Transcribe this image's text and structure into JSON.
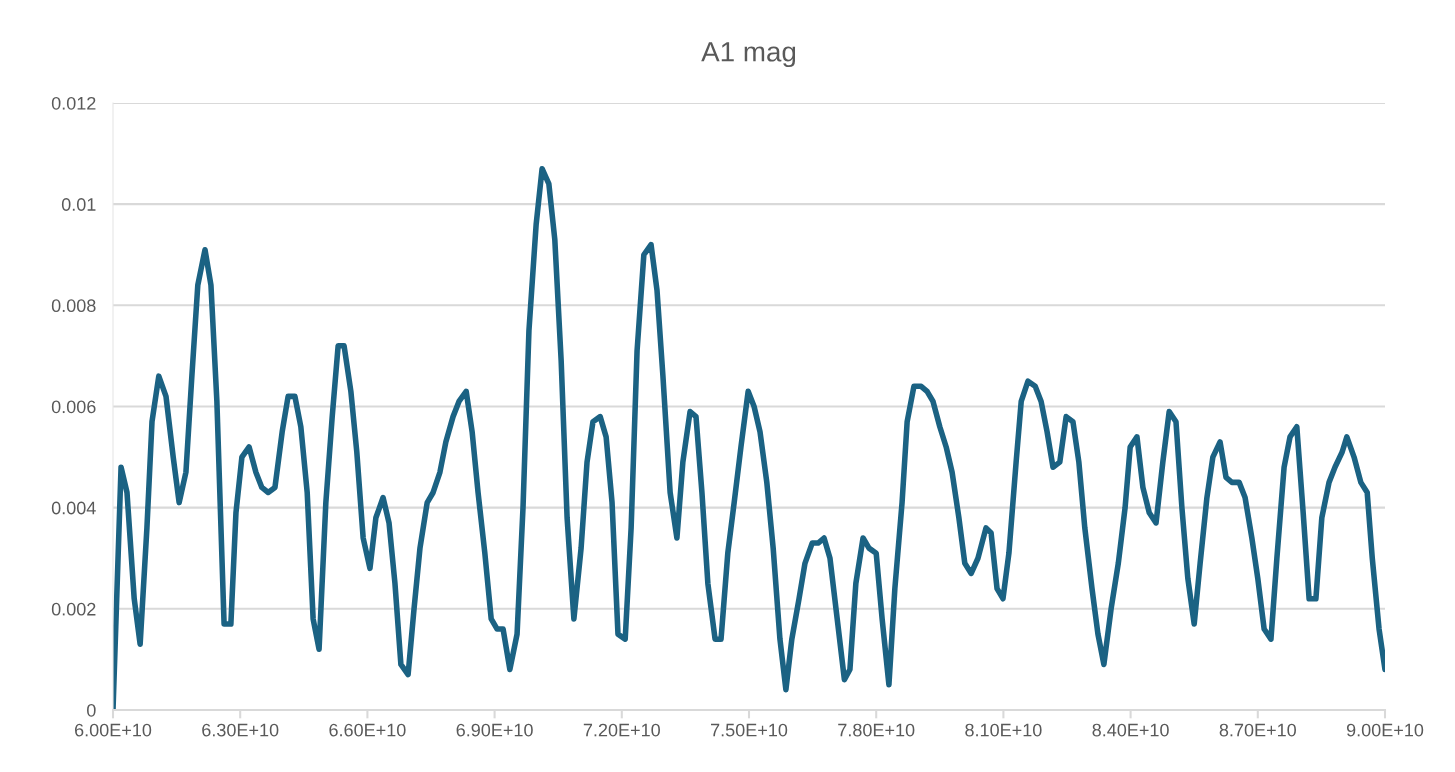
{
  "chart_data": {
    "type": "line",
    "title": "A1 mag",
    "xlim": [
      60000000000.0,
      90000000000.0
    ],
    "xticks": [
      {
        "value": 60000000000.0,
        "label": "6.00E+10"
      },
      {
        "value": 63000000000.0,
        "label": "6.30E+10"
      },
      {
        "value": 66000000000.0,
        "label": "6.60E+10"
      },
      {
        "value": 69000000000.0,
        "label": "6.90E+10"
      },
      {
        "value": 72000000000.0,
        "label": "7.20E+10"
      },
      {
        "value": 75000000000.0,
        "label": "7.50E+10"
      },
      {
        "value": 78000000000.0,
        "label": "7.80E+10"
      },
      {
        "value": 81000000000.0,
        "label": "8.10E+10"
      },
      {
        "value": 84000000000.0,
        "label": "8.40E+10"
      },
      {
        "value": 87000000000.0,
        "label": "8.70E+10"
      },
      {
        "value": 90000000000.0,
        "label": "9.00E+10"
      }
    ],
    "ylim": [
      0,
      0.012
    ],
    "yticks": [
      0,
      0.002,
      0.004,
      0.006,
      0.008,
      0.01,
      0.012
    ],
    "grid": "y",
    "series": [
      {
        "color": "#1b6283",
        "x": [
          60000000000.0,
          60190000000.0,
          60330000000.0,
          60500000000.0,
          60640000000.0,
          60800000000.0,
          60920000000.0,
          61080000000.0,
          61250000000.0,
          61420000000.0,
          61560000000.0,
          61720000000.0,
          61860000000.0,
          62000000000.0,
          62170000000.0,
          62310000000.0,
          62450000000.0,
          62620000000.0,
          62780000000.0,
          62900000000.0,
          63040000000.0,
          63210000000.0,
          63370000000.0,
          63510000000.0,
          63660000000.0,
          63820000000.0,
          63990000000.0,
          64130000000.0,
          64290000000.0,
          64430000000.0,
          64580000000.0,
          64720000000.0,
          64860000000.0,
          65020000000.0,
          65170000000.0,
          65310000000.0,
          65450000000.0,
          65610000000.0,
          65750000000.0,
          65900000000.0,
          66060000000.0,
          66200000000.0,
          66370000000.0,
          66510000000.0,
          66650000000.0,
          66790000000.0,
          66960000000.0,
          67100000000.0,
          67240000000.0,
          67410000000.0,
          67550000000.0,
          67710000000.0,
          67850000000.0,
          68020000000.0,
          68160000000.0,
          68330000000.0,
          68470000000.0,
          68610000000.0,
          68770000000.0,
          68920000000.0,
          69060000000.0,
          69200000000.0,
          69360000000.0,
          69530000000.0,
          69670000000.0,
          69810000000.0,
          69980000000.0,
          70120000000.0,
          70280000000.0,
          70420000000.0,
          70570000000.0,
          70710000000.0,
          70870000000.0,
          71040000000.0,
          71180000000.0,
          71320000000.0,
          71490000000.0,
          71630000000.0,
          71770000000.0,
          71910000000.0,
          72080000000.0,
          72220000000.0,
          72360000000.0,
          72520000000.0,
          72690000000.0,
          72830000000.0,
          72970000000.0,
          73140000000.0,
          73300000000.0,
          73440000000.0,
          73610000000.0,
          73750000000.0,
          73890000000.0,
          74030000000.0,
          74200000000.0,
          74340000000.0,
          74500000000.0,
          74650000000.0,
          74810000000.0,
          74980000000.0,
          75120000000.0,
          75260000000.0,
          75420000000.0,
          75570000000.0,
          75730000000.0,
          75870000000.0,
          76010000000.0,
          76180000000.0,
          76320000000.0,
          76490000000.0,
          76630000000.0,
          76770000000.0,
          76910000000.0,
          77080000000.0,
          77250000000.0,
          77380000000.0,
          77520000000.0,
          77690000000.0,
          77830000000.0,
          78000000000.0,
          78140000000.0,
          78300000000.0,
          78440000000.0,
          78610000000.0,
          78730000000.0,
          78890000000.0,
          79060000000.0,
          79200000000.0,
          79340000000.0,
          79500000000.0,
          79650000000.0,
          79790000000.0,
          79950000000.0,
          80090000000.0,
          80240000000.0,
          80400000000.0,
          80590000000.0,
          80710000000.0,
          80850000000.0,
          80990000000.0,
          81130000000.0,
          81300000000.0,
          81420000000.0,
          81580000000.0,
          81750000000.0,
          81890000000.0,
          82030000000.0,
          82170000000.0,
          82330000000.0,
          82480000000.0,
          82640000000.0,
          82780000000.0,
          82920000000.0,
          83090000000.0,
          83230000000.0,
          83370000000.0,
          83540000000.0,
          83710000000.0,
          83870000000.0,
          83990000000.0,
          84150000000.0,
          84290000000.0,
          84440000000.0,
          84600000000.0,
          84760000000.0,
          84910000000.0,
          85070000000.0,
          85210000000.0,
          85350000000.0,
          85500000000.0,
          85640000000.0,
          85800000000.0,
          85940000000.0,
          86110000000.0,
          86250000000.0,
          86390000000.0,
          86560000000.0,
          86700000000.0,
          86860000000.0,
          87000000000.0,
          87150000000.0,
          87310000000.0,
          87450000000.0,
          87620000000.0,
          87760000000.0,
          87920000000.0,
          88070000000.0,
          88210000000.0,
          88370000000.0,
          88510000000.0,
          88680000000.0,
          88820000000.0,
          88990000000.0,
          89100000000.0,
          89270000000.0,
          89430000000.0,
          89580000000.0,
          89700000000.0,
          89860000000.0,
          90000000000.0
        ],
        "values": [
          0,
          0.0048,
          0.0043,
          0.0022,
          0.0013,
          0.0036,
          0.0057,
          0.0066,
          0.0062,
          0.005,
          0.0041,
          0.0047,
          0.0066,
          0.0084,
          0.0091,
          0.0084,
          0.0061,
          0.0017,
          0.0017,
          0.0039,
          0.005,
          0.0052,
          0.0047,
          0.0044,
          0.0043,
          0.0044,
          0.0055,
          0.0062,
          0.0062,
          0.0056,
          0.0043,
          0.0018,
          0.0012,
          0.0041,
          0.0058,
          0.0072,
          0.0072,
          0.0063,
          0.0051,
          0.0034,
          0.0028,
          0.0038,
          0.0042,
          0.0037,
          0.0025,
          0.0009,
          0.0007,
          0.002,
          0.0032,
          0.0041,
          0.0043,
          0.0047,
          0.0053,
          0.0058,
          0.0061,
          0.0063,
          0.0055,
          0.0043,
          0.0031,
          0.0018,
          0.0016,
          0.0016,
          0.0008,
          0.0015,
          0.004,
          0.0075,
          0.0096,
          0.0107,
          0.0104,
          0.0093,
          0.0069,
          0.0038,
          0.0018,
          0.0032,
          0.0049,
          0.0057,
          0.0058,
          0.0054,
          0.0041,
          0.0015,
          0.0014,
          0.0036,
          0.0071,
          0.009,
          0.0092,
          0.0083,
          0.0066,
          0.0043,
          0.0034,
          0.0049,
          0.0059,
          0.0058,
          0.0043,
          0.0025,
          0.0014,
          0.0014,
          0.0031,
          0.0041,
          0.0052,
          0.0063,
          0.006,
          0.0055,
          0.0045,
          0.0032,
          0.0014,
          0.0004,
          0.0014,
          0.0022,
          0.0029,
          0.0033,
          0.0033,
          0.0034,
          0.003,
          0.0018,
          0.0006,
          0.0008,
          0.0025,
          0.0034,
          0.0032,
          0.0031,
          0.0018,
          0.0005,
          0.0024,
          0.0041,
          0.0057,
          0.0064,
          0.0064,
          0.0063,
          0.0061,
          0.0056,
          0.0052,
          0.0047,
          0.0038,
          0.0029,
          0.0027,
          0.003,
          0.0036,
          0.0035,
          0.0024,
          0.0022,
          0.0031,
          0.0049,
          0.0061,
          0.0065,
          0.0064,
          0.0061,
          0.0055,
          0.0048,
          0.0049,
          0.0058,
          0.0057,
          0.0049,
          0.0036,
          0.0024,
          0.0015,
          0.0009,
          0.002,
          0.0029,
          0.004,
          0.0052,
          0.0054,
          0.0044,
          0.0039,
          0.0037,
          0.0049,
          0.0059,
          0.0057,
          0.004,
          0.0026,
          0.0017,
          0.0029,
          0.0042,
          0.005,
          0.0053,
          0.0046,
          0.0045,
          0.0045,
          0.0042,
          0.0034,
          0.0026,
          0.0016,
          0.0014,
          0.003,
          0.0048,
          0.0054,
          0.0056,
          0.0039,
          0.0022,
          0.0022,
          0.0038,
          0.0045,
          0.0048,
          0.0051,
          0.0054,
          0.005,
          0.0045,
          0.0043,
          0.003,
          0.0016,
          0.0008
        ]
      }
    ]
  }
}
